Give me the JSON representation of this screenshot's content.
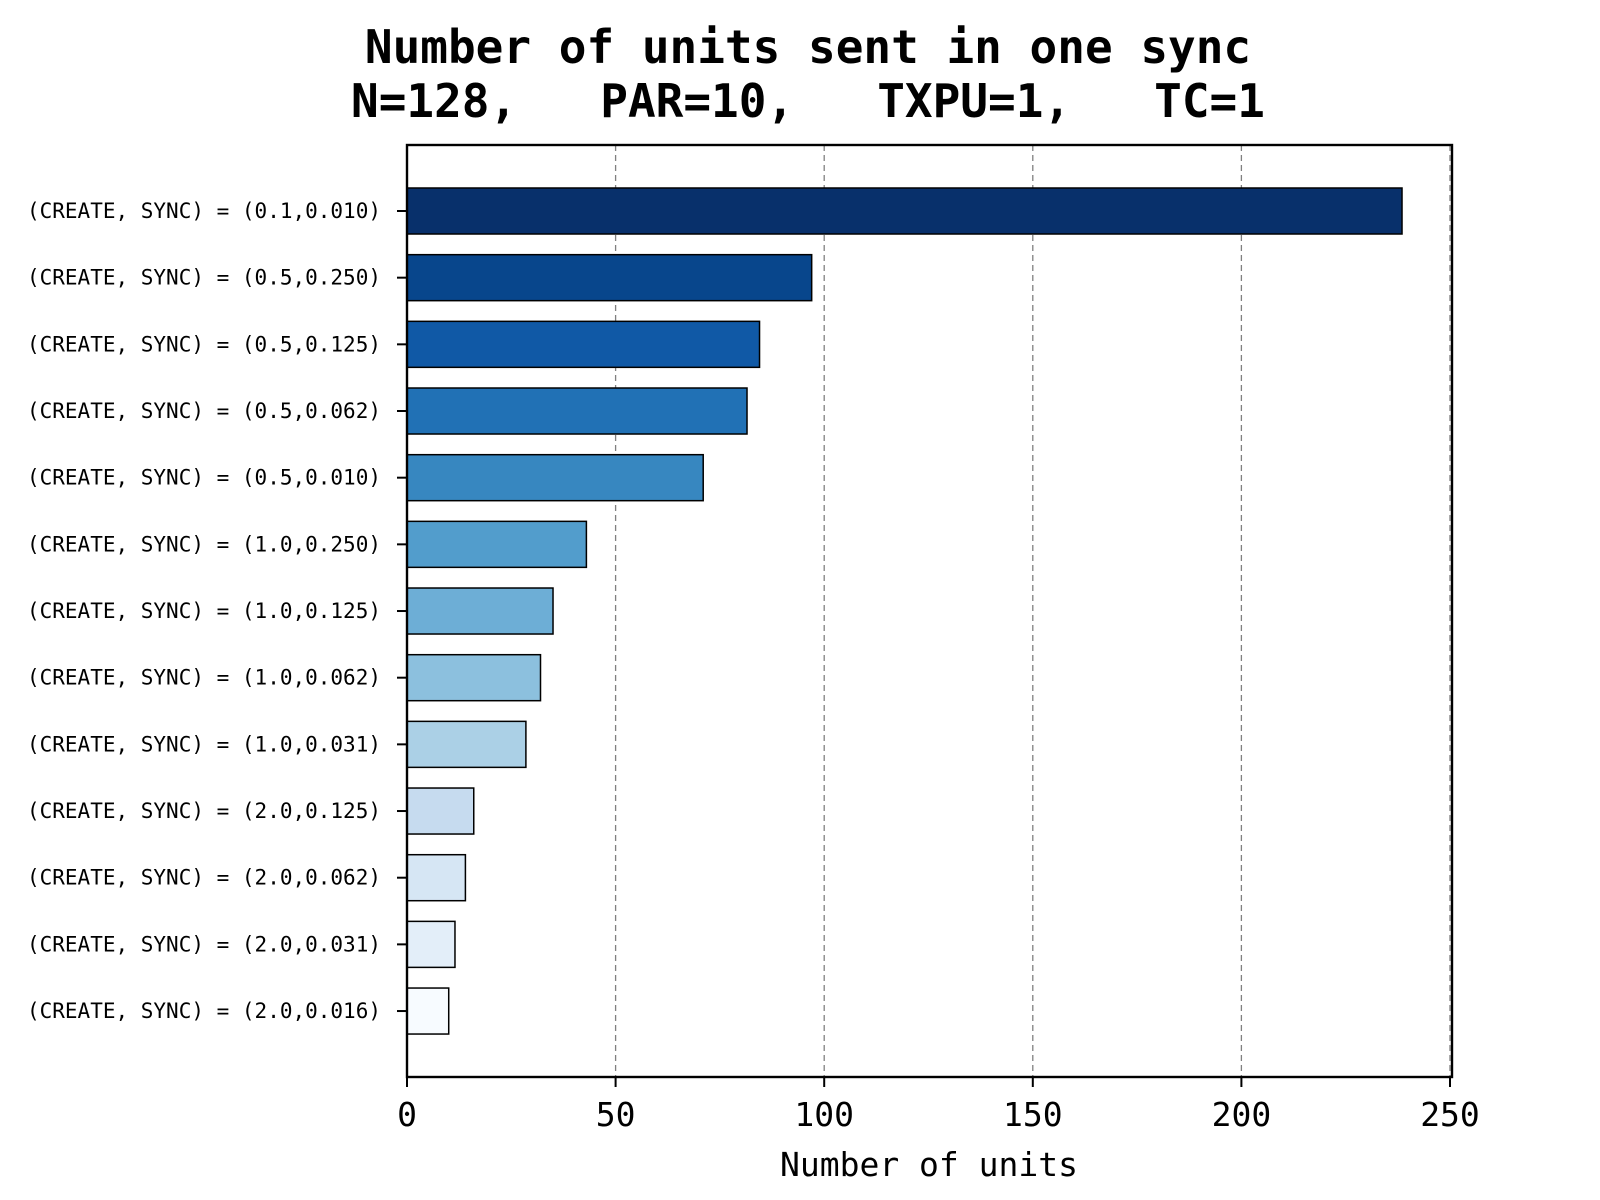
{
  "chart_data": {
    "type": "bar",
    "orientation": "horizontal",
    "title": "Number of units sent in one sync",
    "subtitle": "N=128,   PAR=10,   TXPU=1,   TC=1",
    "xlabel": "Number of units",
    "ylabel": "",
    "xlim": [
      0,
      250
    ],
    "xticks": [
      0,
      50,
      100,
      150,
      200,
      250
    ],
    "grid": "x-dashed",
    "legend": "none",
    "categories": [
      "(CREATE, SYNC) = (0.1,0.010)",
      "(CREATE, SYNC) = (0.5,0.250)",
      "(CREATE, SYNC) = (0.5,0.125)",
      "(CREATE, SYNC) = (0.5,0.062)",
      "(CREATE, SYNC) = (0.5,0.010)",
      "(CREATE, SYNC) = (1.0,0.250)",
      "(CREATE, SYNC) = (1.0,0.125)",
      "(CREATE, SYNC) = (1.0,0.062)",
      "(CREATE, SYNC) = (1.0,0.031)",
      "(CREATE, SYNC) = (2.0,0.125)",
      "(CREATE, SYNC) = (2.0,0.062)",
      "(CREATE, SYNC) = (2.0,0.031)",
      "(CREATE, SYNC) = (2.0,0.016)"
    ],
    "values": [
      238.5,
      97,
      84.5,
      81.5,
      71,
      43,
      35,
      32,
      28.5,
      16,
      14,
      11.5,
      10
    ],
    "colors": [
      "#08306b",
      "#08468c",
      "#1059a6",
      "#2171b5",
      "#3787c0",
      "#529dcc",
      "#6daed6",
      "#8cc0de",
      "#abd0e6",
      "#c6dbef",
      "#d6e6f4",
      "#e3eef9",
      "#f7fbff"
    ]
  }
}
